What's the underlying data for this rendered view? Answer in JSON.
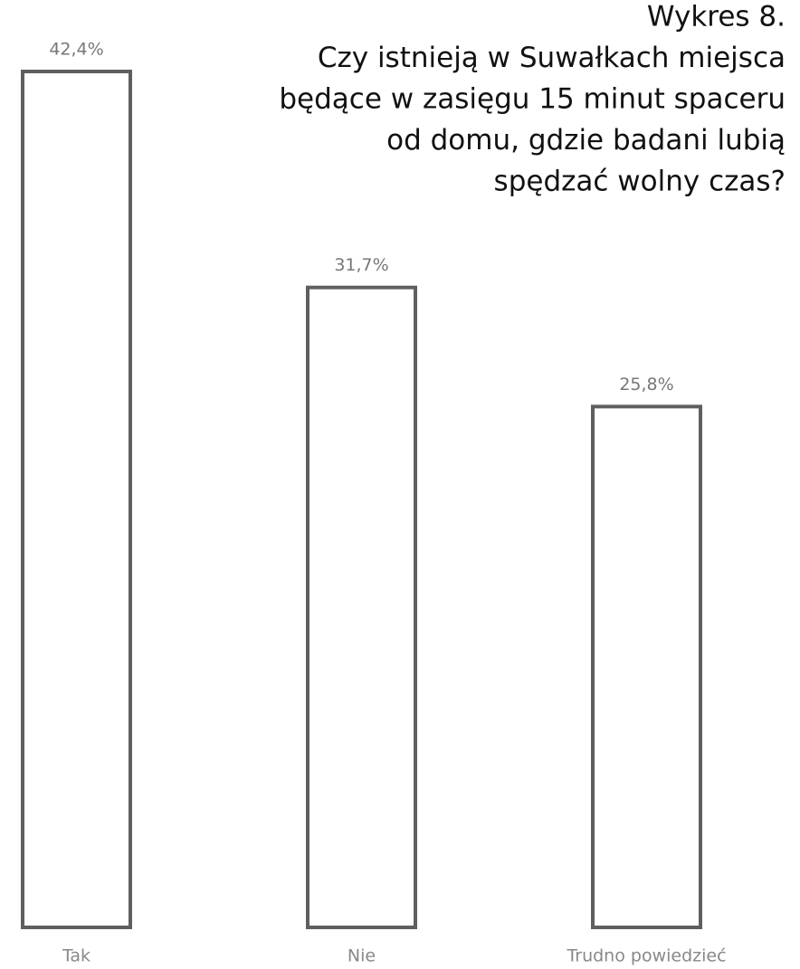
{
  "chart_data": {
    "type": "bar",
    "title": [
      "Wykres 8.",
      "Czy istnieją w Suwałkach miejsca",
      "będące w zasięgu 15 minut spaceru",
      "od domu, gdzie badani lubią",
      "spędzać wolny czas?"
    ],
    "categories": [
      "Tak",
      "Nie",
      "Trudno powiedzieć"
    ],
    "values": [
      42.4,
      31.7,
      25.8
    ],
    "value_labels": [
      "42,4%",
      "31,7%",
      "25,8%"
    ],
    "color": "#5f5f5f"
  }
}
